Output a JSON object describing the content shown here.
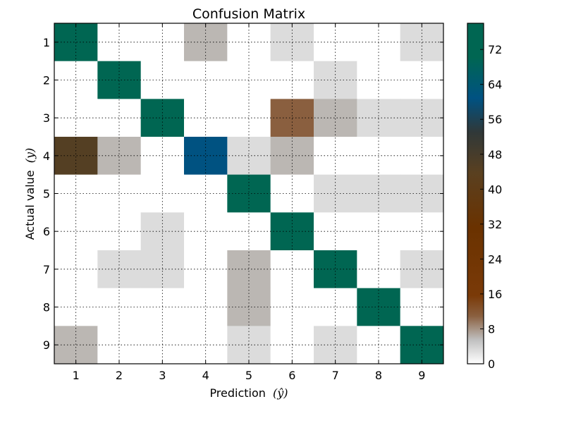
{
  "chart_data": {
    "type": "heatmap",
    "title": "Confusion Matrix",
    "xlabel": "Prediction",
    "xlabel_symbol": "(ŷ)",
    "ylabel": "Actual value",
    "ylabel_symbol": "(y)",
    "x_categories": [
      "1",
      "2",
      "3",
      "4",
      "5",
      "6",
      "7",
      "8",
      "9"
    ],
    "y_categories": [
      "1",
      "2",
      "3",
      "4",
      "5",
      "6",
      "7",
      "8",
      "9"
    ],
    "values": [
      [
        77,
        0,
        0,
        6,
        0,
        3,
        0,
        0,
        3
      ],
      [
        0,
        77,
        0,
        0,
        0,
        0,
        3,
        0,
        0
      ],
      [
        0,
        0,
        77,
        0,
        0,
        11,
        6,
        3,
        3
      ],
      [
        45,
        6,
        0,
        61,
        3,
        6,
        0,
        0,
        0
      ],
      [
        0,
        0,
        0,
        0,
        77,
        0,
        3,
        3,
        3
      ],
      [
        0,
        0,
        3,
        0,
        0,
        77,
        0,
        0,
        0
      ],
      [
        0,
        3,
        3,
        0,
        6,
        0,
        77,
        0,
        3
      ],
      [
        0,
        0,
        0,
        0,
        6,
        0,
        0,
        77,
        0
      ],
      [
        6,
        0,
        0,
        0,
        3,
        0,
        3,
        0,
        77
      ]
    ],
    "colorbar": {
      "ticks": [
        "0",
        "8",
        "16",
        "24",
        "32",
        "40",
        "48",
        "56",
        "64",
        "72"
      ],
      "range": [
        0,
        78
      ]
    },
    "grid": true,
    "colors": {
      "low": "#ffffff",
      "grey": "#c0c0c0",
      "brown": "#6a3c10",
      "dark_blue": "#004c73",
      "teal": "#006652"
    }
  }
}
